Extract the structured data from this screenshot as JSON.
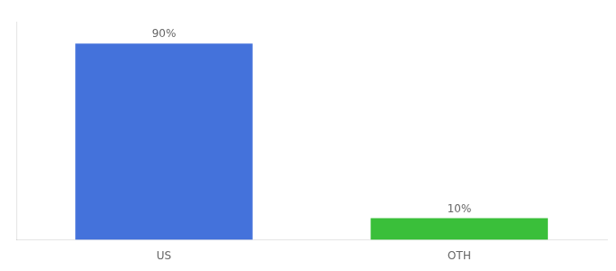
{
  "chart_data": {
    "type": "bar",
    "categories": [
      "US",
      "OTH"
    ],
    "values": [
      90,
      10
    ],
    "value_labels": [
      "90%",
      "10%"
    ],
    "data_labels": true,
    "colors": [
      "#4472db",
      "#3abf3a"
    ],
    "ylim": [
      0,
      100
    ],
    "tick_labels": "x",
    "grid": false
  }
}
